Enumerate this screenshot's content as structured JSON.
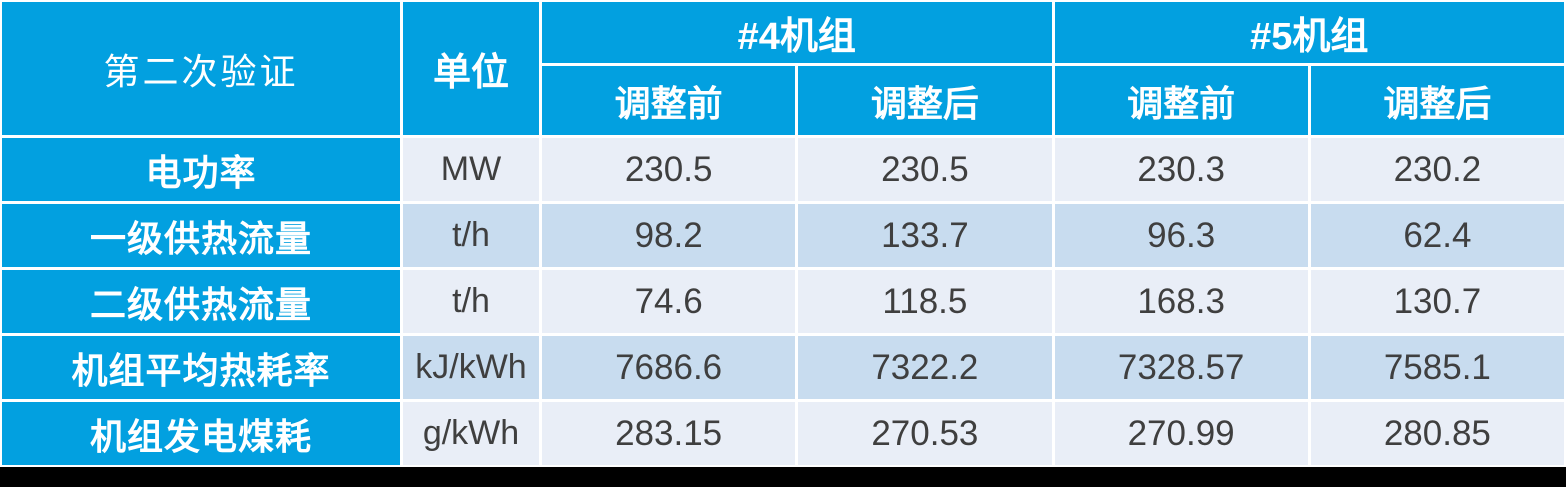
{
  "table": {
    "corner_header": "第二次验证",
    "unit_header": "单位",
    "groups": [
      {
        "label": "#4机组"
      },
      {
        "label": "#5机组"
      }
    ],
    "subheaders": [
      "调整前",
      "调整后",
      "调整前",
      "调整后"
    ],
    "rows": [
      {
        "label": "电功率",
        "unit": "MW",
        "values": [
          "230.5",
          "230.5",
          "230.3",
          "230.2"
        ]
      },
      {
        "label": "一级供热流量",
        "unit": "t/h",
        "values": [
          "98.2",
          "133.7",
          "96.3",
          "62.4"
        ]
      },
      {
        "label": "二级供热流量",
        "unit": "t/h",
        "values": [
          "74.6",
          "118.5",
          "168.3",
          "130.7"
        ]
      },
      {
        "label": "机组平均热耗率",
        "unit": "kJ/kWh",
        "values": [
          "7686.6",
          "7322.2",
          "7328.57",
          "7585.1"
        ]
      },
      {
        "label": "机组发电煤耗",
        "unit": "g/kWh",
        "values": [
          "283.15",
          "270.53",
          "270.99",
          "280.85"
        ]
      }
    ]
  },
  "colors": {
    "header_blue": "#02A0E0",
    "row_light": "#E9EEF7",
    "row_shaded": "#C8DCEF",
    "value_text": "#3F3F3F",
    "gridline": "#FFFFFF",
    "bottom_bar": "#000000"
  },
  "chart_data": {
    "type": "table",
    "title": "第二次验证",
    "column_headers": [
      "第二次验证",
      "单位",
      "#4机组 调整前",
      "#4机组 调整后",
      "#5机组 调整前",
      "#5机组 调整后"
    ],
    "rows": [
      [
        "电功率",
        "MW",
        230.5,
        230.5,
        230.3,
        230.2
      ],
      [
        "一级供热流量",
        "t/h",
        98.2,
        133.7,
        96.3,
        62.4
      ],
      [
        "二级供热流量",
        "t/h",
        74.6,
        118.5,
        168.3,
        130.7
      ],
      [
        "机组平均热耗率",
        "kJ/kWh",
        7686.6,
        7322.2,
        7328.57,
        7585.1
      ],
      [
        "机组发电煤耗",
        "g/kWh",
        283.15,
        270.53,
        270.99,
        280.85
      ]
    ]
  }
}
